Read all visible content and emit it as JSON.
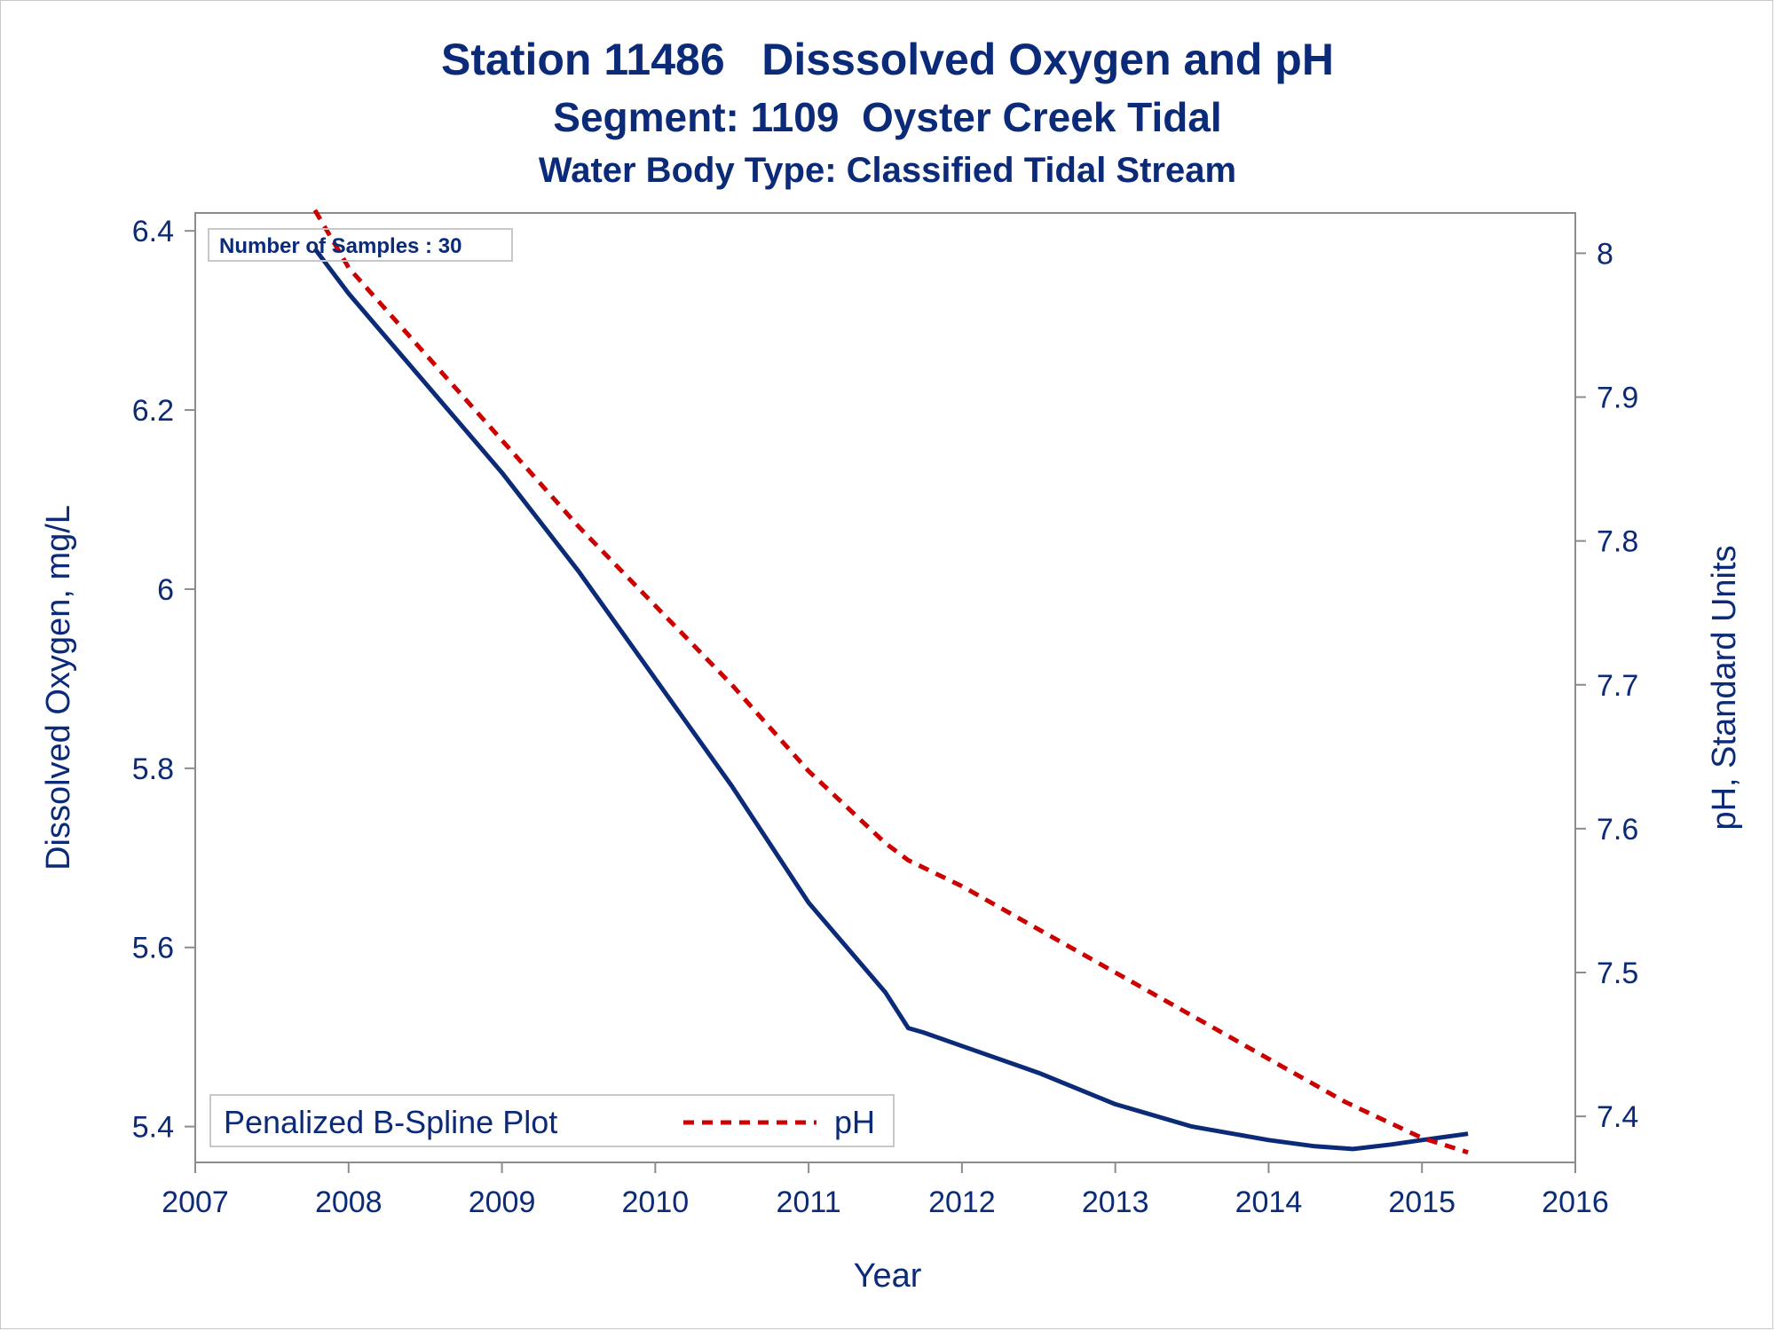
{
  "titles": {
    "line1": "Station 11486   Disssolved Oxygen and pH",
    "line2": "Segment: 1109  Oyster Creek Tidal",
    "line3": "Water Body Type: Classified Tidal Stream"
  },
  "inset_label": "Number of Samples : 30",
  "legend": {
    "title": "Penalized B-Spline Plot",
    "entries": [
      "pH"
    ]
  },
  "colors": {
    "text": "#0b2a78",
    "do_line": "#0b2a78",
    "ph_line": "#cc0000",
    "axis": "#8c8c8c"
  },
  "chart_data": {
    "type": "line",
    "xlabel": "Year",
    "ylabel_left": "Dissolved Oxygen, mg/L",
    "ylabel_right": "pH, Standard Units",
    "xlim": [
      2007,
      2016
    ],
    "ylim_left": [
      5.36,
      6.42
    ],
    "ylim_right": [
      7.368,
      8.028
    ],
    "x_ticks": [
      2007,
      2008,
      2009,
      2010,
      2011,
      2012,
      2013,
      2014,
      2015,
      2016
    ],
    "y_left_ticks": [
      5.4,
      5.6,
      5.8,
      6.0,
      6.2,
      6.4
    ],
    "y_left_tick_labels": [
      "5.4",
      "5.6",
      "5.8",
      "6",
      "6.2",
      "6.4"
    ],
    "y_right_ticks": [
      7.4,
      7.5,
      7.6,
      7.7,
      7.8,
      7.9,
      8.0
    ],
    "y_right_tick_labels": [
      "7.4",
      "7.5",
      "7.6",
      "7.7",
      "7.8",
      "7.9",
      "8"
    ],
    "grid": false,
    "legend_position": "bottom-left",
    "series": [
      {
        "axis": "left",
        "style": "solid",
        "x": [
          2007.78,
          2008.0,
          2008.5,
          2009.0,
          2009.5,
          2010.0,
          2010.5,
          2011.0,
          2011.5,
          2011.65,
          2011.75,
          2012.0,
          2012.5,
          2013.0,
          2013.5,
          2014.0,
          2014.3,
          2014.55,
          2014.8,
          2015.0,
          2015.3
        ],
        "y": [
          6.38,
          6.33,
          6.23,
          6.13,
          6.02,
          5.9,
          5.78,
          5.65,
          5.55,
          5.51,
          5.505,
          5.49,
          5.46,
          5.425,
          5.4,
          5.385,
          5.378,
          5.375,
          5.38,
          5.385,
          5.392
        ]
      },
      {
        "name": "pH",
        "axis": "right",
        "style": "dashed",
        "x": [
          2007.78,
          2008.0,
          2008.5,
          2009.0,
          2009.5,
          2010.0,
          2010.5,
          2011.0,
          2011.5,
          2011.65,
          2012.0,
          2012.5,
          2013.0,
          2013.5,
          2014.0,
          2014.5,
          2015.0,
          2015.3
        ],
        "y": [
          8.03,
          7.99,
          7.93,
          7.87,
          7.81,
          7.755,
          7.7,
          7.64,
          7.59,
          7.578,
          7.56,
          7.53,
          7.5,
          7.47,
          7.44,
          7.41,
          7.385,
          7.375
        ]
      }
    ]
  }
}
